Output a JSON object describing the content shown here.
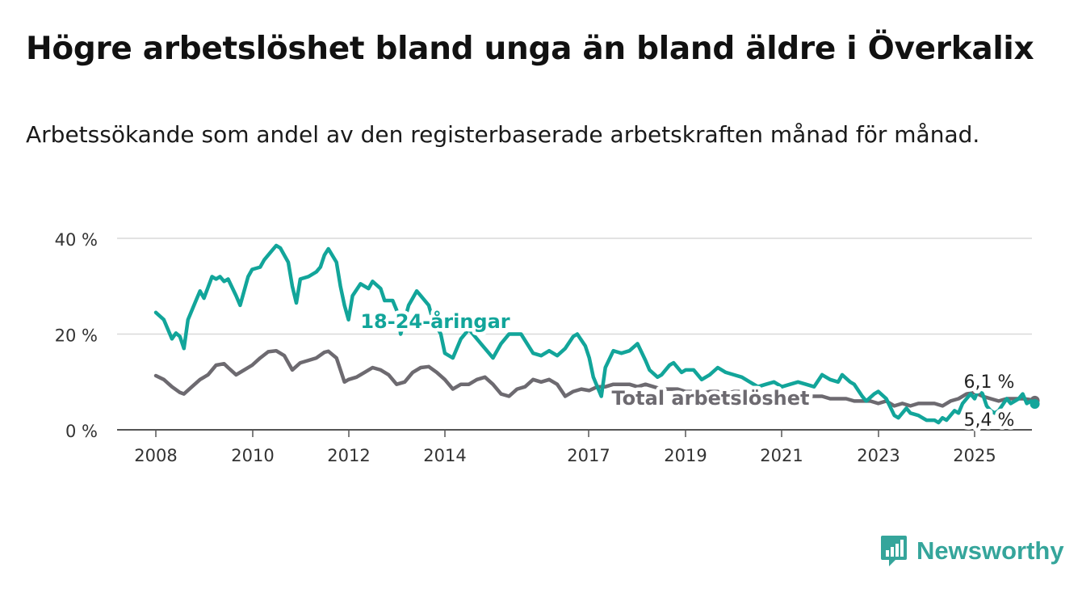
{
  "title": "Högre arbetslöshet bland unga än bland äldre i Överkalix",
  "subtitle": "Arbetssökande som andel av den registerbaserade arbetskraften månad för månad.",
  "brand": "Newsworthy",
  "chart_data": {
    "type": "line",
    "ylim": [
      0,
      40
    ],
    "yticks": [
      "0 %",
      "20 %",
      "40 %"
    ],
    "xticks": [
      "2008",
      "2010",
      "2012",
      "2014",
      "2017",
      "2019",
      "2021",
      "2023",
      "2025"
    ],
    "grid": true,
    "series": [
      {
        "name": "18-24-åringar",
        "color": "#12a59a",
        "end_label": "5,4 %",
        "points": [
          [
            "2008-01",
            24.5
          ],
          [
            "2008-03",
            23
          ],
          [
            "2008-05",
            19
          ],
          [
            "2008-06",
            20.2
          ],
          [
            "2008-07",
            19.5
          ],
          [
            "2008-08",
            17
          ],
          [
            "2008-09",
            23
          ],
          [
            "2008-11",
            27
          ],
          [
            "2008-12",
            29
          ],
          [
            "2009-01",
            27.5
          ],
          [
            "2009-03",
            32
          ],
          [
            "2009-04",
            31.5
          ],
          [
            "2009-05",
            32
          ],
          [
            "2009-06",
            31
          ],
          [
            "2009-07",
            31.5
          ],
          [
            "2009-09",
            28
          ],
          [
            "2009-10",
            26
          ],
          [
            "2009-12",
            32
          ],
          [
            "2010-01",
            33.5
          ],
          [
            "2010-03",
            34
          ],
          [
            "2010-04",
            35.5
          ],
          [
            "2010-06",
            37.5
          ],
          [
            "2010-07",
            38.5
          ],
          [
            "2010-08",
            38
          ],
          [
            "2010-10",
            35
          ],
          [
            "2010-11",
            30
          ],
          [
            "2010-12",
            26.5
          ],
          [
            "2011-01",
            31.5
          ],
          [
            "2011-03",
            32
          ],
          [
            "2011-05",
            33
          ],
          [
            "2011-06",
            34
          ],
          [
            "2011-07",
            36.5
          ],
          [
            "2011-08",
            37.8
          ],
          [
            "2011-10",
            35
          ],
          [
            "2011-11",
            30
          ],
          [
            "2011-12",
            26
          ],
          [
            "2012-01",
            23
          ],
          [
            "2012-02",
            28
          ],
          [
            "2012-04",
            30.5
          ],
          [
            "2012-06",
            29.5
          ],
          [
            "2012-07",
            31
          ],
          [
            "2012-09",
            29.5
          ],
          [
            "2012-10",
            27
          ],
          [
            "2012-12",
            27
          ],
          [
            "2013-01",
            25
          ],
          [
            "2013-02",
            20
          ],
          [
            "2013-04",
            26
          ],
          [
            "2013-05",
            27.5
          ],
          [
            "2013-06",
            29
          ],
          [
            "2013-07",
            28
          ],
          [
            "2013-09",
            26
          ],
          [
            "2013-10",
            23
          ],
          [
            "2013-12",
            20
          ],
          [
            "2014-01",
            16
          ],
          [
            "2014-03",
            15
          ],
          [
            "2014-05",
            19
          ],
          [
            "2014-07",
            21
          ],
          [
            "2014-10",
            18
          ],
          [
            "2014-12",
            16
          ],
          [
            "2015-01",
            15
          ],
          [
            "2015-03",
            18
          ],
          [
            "2015-05",
            20
          ],
          [
            "2015-08",
            20
          ],
          [
            "2015-11",
            16
          ],
          [
            "2016-01",
            15.5
          ],
          [
            "2016-03",
            16.5
          ],
          [
            "2016-05",
            15.5
          ],
          [
            "2016-07",
            17
          ],
          [
            "2016-09",
            19.5
          ],
          [
            "2016-10",
            20
          ],
          [
            "2016-12",
            17.5
          ],
          [
            "2017-01",
            15
          ],
          [
            "2017-02",
            11
          ],
          [
            "2017-04",
            7
          ],
          [
            "2017-05",
            13
          ],
          [
            "2017-07",
            16.5
          ],
          [
            "2017-09",
            16
          ],
          [
            "2017-11",
            16.5
          ],
          [
            "2018-01",
            18
          ],
          [
            "2018-03",
            14.5
          ],
          [
            "2018-04",
            12.5
          ],
          [
            "2018-06",
            11
          ],
          [
            "2018-07",
            11.5
          ],
          [
            "2018-09",
            13.5
          ],
          [
            "2018-10",
            14
          ],
          [
            "2018-12",
            12
          ],
          [
            "2019-01",
            12.5
          ],
          [
            "2019-03",
            12.5
          ],
          [
            "2019-05",
            10.5
          ],
          [
            "2019-07",
            11.5
          ],
          [
            "2019-09",
            13
          ],
          [
            "2019-11",
            12
          ],
          [
            "2020-01",
            11.5
          ],
          [
            "2020-03",
            11
          ],
          [
            "2020-05",
            10
          ],
          [
            "2020-07",
            9
          ],
          [
            "2020-09",
            9.5
          ],
          [
            "2020-11",
            10
          ],
          [
            "2021-01",
            9
          ],
          [
            "2021-03",
            9.5
          ],
          [
            "2021-05",
            10
          ],
          [
            "2021-07",
            9.5
          ],
          [
            "2021-09",
            9
          ],
          [
            "2021-11",
            11.5
          ],
          [
            "2022-01",
            10.5
          ],
          [
            "2022-03",
            10
          ],
          [
            "2022-04",
            11.5
          ],
          [
            "2022-06",
            10
          ],
          [
            "2022-07",
            9.5
          ],
          [
            "2022-09",
            7
          ],
          [
            "2022-10",
            6
          ],
          [
            "2022-12",
            7.5
          ],
          [
            "2023-01",
            8
          ],
          [
            "2023-03",
            6.5
          ],
          [
            "2023-05",
            3
          ],
          [
            "2023-06",
            2.5
          ],
          [
            "2023-08",
            4.5
          ],
          [
            "2023-09",
            3.5
          ],
          [
            "2023-11",
            3
          ],
          [
            "2024-01",
            2
          ],
          [
            "2024-03",
            2
          ],
          [
            "2024-04",
            1.5
          ],
          [
            "2024-05",
            2.5
          ],
          [
            "2024-06",
            2
          ],
          [
            "2024-08",
            4
          ],
          [
            "2024-09",
            3.5
          ],
          [
            "2024-10",
            5.5
          ],
          [
            "2024-12",
            7.5
          ],
          [
            "2025-01",
            6.5
          ],
          [
            "2025-02",
            8.5
          ],
          [
            "2025-03",
            7.5
          ],
          [
            "2025-04",
            5
          ],
          [
            "2025-05",
            4
          ],
          [
            "2025-06",
            3.5
          ],
          [
            "2025-07",
            4
          ],
          [
            "2025-09",
            6.5
          ],
          [
            "2025-10",
            5.5
          ],
          [
            "2025-12",
            6.5
          ],
          [
            "2026-01",
            7.5
          ],
          [
            "2026-02",
            5.5
          ],
          [
            "2026-03",
            6
          ],
          [
            "2026-04",
            5.4
          ]
        ]
      },
      {
        "name": "Total arbetslöshet",
        "color": "#6d6a70",
        "end_label": "6,1 %",
        "points": [
          [
            "2008-01",
            11.3
          ],
          [
            "2008-03",
            10.5
          ],
          [
            "2008-05",
            9
          ],
          [
            "2008-07",
            7.8
          ],
          [
            "2008-08",
            7.5
          ],
          [
            "2008-10",
            9
          ],
          [
            "2008-12",
            10.5
          ],
          [
            "2009-02",
            11.5
          ],
          [
            "2009-04",
            13.5
          ],
          [
            "2009-06",
            13.8
          ],
          [
            "2009-07",
            13
          ],
          [
            "2009-09",
            11.5
          ],
          [
            "2009-11",
            12.5
          ],
          [
            "2010-01",
            13.5
          ],
          [
            "2010-03",
            15
          ],
          [
            "2010-05",
            16.3
          ],
          [
            "2010-07",
            16.5
          ],
          [
            "2010-09",
            15.5
          ],
          [
            "2010-11",
            12.5
          ],
          [
            "2011-01",
            14
          ],
          [
            "2011-03",
            14.5
          ],
          [
            "2011-05",
            15
          ],
          [
            "2011-07",
            16.2
          ],
          [
            "2011-08",
            16.4
          ],
          [
            "2011-10",
            15
          ],
          [
            "2011-12",
            10
          ],
          [
            "2012-01",
            10.5
          ],
          [
            "2012-03",
            11
          ],
          [
            "2012-05",
            12
          ],
          [
            "2012-07",
            13
          ],
          [
            "2012-09",
            12.5
          ],
          [
            "2012-11",
            11.5
          ],
          [
            "2013-01",
            9.5
          ],
          [
            "2013-03",
            10
          ],
          [
            "2013-05",
            12
          ],
          [
            "2013-07",
            13
          ],
          [
            "2013-09",
            13.2
          ],
          [
            "2013-11",
            12
          ],
          [
            "2014-01",
            10.5
          ],
          [
            "2014-03",
            8.5
          ],
          [
            "2014-05",
            9.5
          ],
          [
            "2014-07",
            9.5
          ],
          [
            "2014-09",
            10.5
          ],
          [
            "2014-11",
            11
          ],
          [
            "2015-01",
            9.5
          ],
          [
            "2015-03",
            7.5
          ],
          [
            "2015-05",
            7
          ],
          [
            "2015-07",
            8.5
          ],
          [
            "2015-09",
            9
          ],
          [
            "2015-11",
            10.5
          ],
          [
            "2016-01",
            10
          ],
          [
            "2016-03",
            10.5
          ],
          [
            "2016-05",
            9.5
          ],
          [
            "2016-07",
            7
          ],
          [
            "2016-09",
            8
          ],
          [
            "2016-11",
            8.5
          ],
          [
            "2017-01",
            8.2
          ],
          [
            "2017-03",
            9
          ],
          [
            "2017-05",
            9
          ],
          [
            "2017-07",
            9.5
          ],
          [
            "2017-09",
            9.5
          ],
          [
            "2017-11",
            9.5
          ],
          [
            "2018-01",
            9
          ],
          [
            "2018-03",
            9.5
          ],
          [
            "2018-05",
            9
          ],
          [
            "2018-07",
            8.5
          ],
          [
            "2018-09",
            8.5
          ],
          [
            "2018-11",
            8.5
          ],
          [
            "2019-01",
            8
          ],
          [
            "2019-03",
            8
          ],
          [
            "2019-05",
            7.5
          ],
          [
            "2019-07",
            8
          ],
          [
            "2019-09",
            8
          ],
          [
            "2019-11",
            7.5
          ],
          [
            "2020-01",
            8
          ],
          [
            "2020-03",
            8
          ],
          [
            "2020-05",
            8
          ],
          [
            "2020-07",
            7.5
          ],
          [
            "2020-09",
            7.5
          ],
          [
            "2020-11",
            7.5
          ],
          [
            "2021-01",
            7.5
          ],
          [
            "2021-03",
            7
          ],
          [
            "2021-05",
            7
          ],
          [
            "2021-07",
            7
          ],
          [
            "2021-09",
            7
          ],
          [
            "2021-11",
            7
          ],
          [
            "2022-01",
            6.5
          ],
          [
            "2022-03",
            6.5
          ],
          [
            "2022-05",
            6.5
          ],
          [
            "2022-07",
            6
          ],
          [
            "2022-09",
            6
          ],
          [
            "2022-11",
            6
          ],
          [
            "2023-01",
            5.5
          ],
          [
            "2023-03",
            6
          ],
          [
            "2023-05",
            5
          ],
          [
            "2023-07",
            5.5
          ],
          [
            "2023-09",
            5
          ],
          [
            "2023-11",
            5.5
          ],
          [
            "2024-01",
            5.5
          ],
          [
            "2024-03",
            5.5
          ],
          [
            "2024-05",
            5
          ],
          [
            "2024-07",
            6
          ],
          [
            "2024-09",
            6.5
          ],
          [
            "2024-11",
            7.5
          ],
          [
            "2025-01",
            7.8
          ],
          [
            "2025-03",
            7
          ],
          [
            "2025-05",
            6.5
          ],
          [
            "2025-07",
            6
          ],
          [
            "2025-09",
            6.5
          ],
          [
            "2025-11",
            6.5
          ],
          [
            "2026-01",
            6.5
          ],
          [
            "2026-03",
            6.3
          ],
          [
            "2026-04",
            6.1
          ]
        ]
      }
    ]
  }
}
